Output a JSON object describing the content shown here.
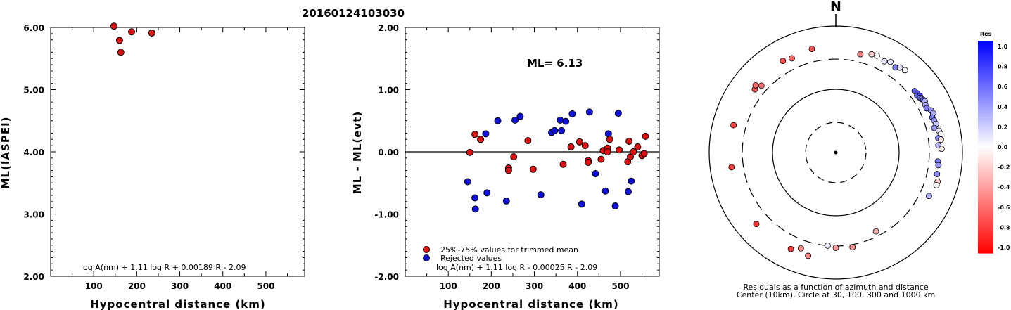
{
  "figure_title": "20160124103030",
  "colors": {
    "trimmed": "#dd1111",
    "rejected": "#1111dd",
    "axis": "#000000"
  },
  "chart_data": [
    {
      "type": "scatter",
      "ylabel": "ML(IASPEI)",
      "xlabel": "Hypocentral distance (km)",
      "xlim": [
        0,
        590
      ],
      "ylim": [
        2.0,
        6.0
      ],
      "xticks": [
        100,
        200,
        300,
        400,
        500
      ],
      "yticks": [
        "2.00",
        "3.00",
        "4.00",
        "5.00",
        "6.00"
      ],
      "formula": "log A(nm) + 1.11 log R + 0.00189 R - 2.09",
      "points": [
        {
          "x": 147,
          "y": 6.02
        },
        {
          "x": 160,
          "y": 5.79
        },
        {
          "x": 163,
          "y": 5.6
        },
        {
          "x": 188,
          "y": 5.93
        },
        {
          "x": 235,
          "y": 5.91
        }
      ]
    },
    {
      "type": "scatter",
      "ylabel": "ML - ML(evt)",
      "xlabel": "Hypocentral distance (km)",
      "xlim": [
        0,
        590
      ],
      "ylim": [
        -2.0,
        2.0
      ],
      "xticks": [
        100,
        200,
        300,
        400,
        500
      ],
      "yticks": [
        "-2.00",
        "-1.00",
        "0.00",
        "1.00",
        "2.00"
      ],
      "annotation": "ML= 6.13",
      "legend": {
        "placement": "bottom-left",
        "trimmed_label": "25%-75% values for trimmed mean",
        "rejected_label": "Rejected values"
      },
      "formula": "log A(nm) + 1.11 log R - 0.00025 R - 2.09",
      "trimmed": [
        {
          "x": 150,
          "y": -0.01
        },
        {
          "x": 162,
          "y": 0.28
        },
        {
          "x": 175,
          "y": 0.2
        },
        {
          "x": 240,
          "y": -0.26
        },
        {
          "x": 240,
          "y": -0.3
        },
        {
          "x": 252,
          "y": -0.08
        },
        {
          "x": 285,
          "y": 0.18
        },
        {
          "x": 297,
          "y": -0.28
        },
        {
          "x": 367,
          "y": -0.2
        },
        {
          "x": 385,
          "y": 0.08
        },
        {
          "x": 405,
          "y": 0.16
        },
        {
          "x": 418,
          "y": 0.1
        },
        {
          "x": 425,
          "y": -0.14
        },
        {
          "x": 425,
          "y": -0.17
        },
        {
          "x": 455,
          "y": -0.12
        },
        {
          "x": 460,
          "y": 0.02
        },
        {
          "x": 470,
          "y": 0.06
        },
        {
          "x": 470,
          "y": 0.0
        },
        {
          "x": 475,
          "y": 0.2
        },
        {
          "x": 497,
          "y": 0.03
        },
        {
          "x": 517,
          "y": -0.16
        },
        {
          "x": 520,
          "y": 0.17
        },
        {
          "x": 523,
          "y": -0.08
        },
        {
          "x": 530,
          "y": 0.0
        },
        {
          "x": 540,
          "y": 0.08
        },
        {
          "x": 550,
          "y": -0.06
        },
        {
          "x": 555,
          "y": -0.03
        },
        {
          "x": 558,
          "y": 0.25
        }
      ],
      "rejected": [
        {
          "x": 145,
          "y": -0.48
        },
        {
          "x": 162,
          "y": -0.74
        },
        {
          "x": 163,
          "y": -0.92
        },
        {
          "x": 187,
          "y": 0.29
        },
        {
          "x": 190,
          "y": -0.66
        },
        {
          "x": 215,
          "y": 0.5
        },
        {
          "x": 235,
          "y": -0.79
        },
        {
          "x": 255,
          "y": 0.51
        },
        {
          "x": 267,
          "y": 0.57
        },
        {
          "x": 315,
          "y": -0.69
        },
        {
          "x": 340,
          "y": 0.31
        },
        {
          "x": 347,
          "y": 0.34
        },
        {
          "x": 360,
          "y": 0.51
        },
        {
          "x": 363,
          "y": 0.34
        },
        {
          "x": 373,
          "y": 0.49
        },
        {
          "x": 388,
          "y": 0.61
        },
        {
          "x": 410,
          "y": -0.84
        },
        {
          "x": 428,
          "y": 0.64
        },
        {
          "x": 442,
          "y": -0.35
        },
        {
          "x": 465,
          "y": -0.63
        },
        {
          "x": 472,
          "y": 0.29
        },
        {
          "x": 488,
          "y": -0.87
        },
        {
          "x": 495,
          "y": 0.62
        },
        {
          "x": 518,
          "y": -0.64
        },
        {
          "x": 525,
          "y": -0.47
        }
      ]
    },
    {
      "type": "polar-scatter",
      "north_label": "N",
      "caption_line1": "Residuals as a function of azimuth and distance",
      "caption_line2": "Center (10km), Circle at 30, 100, 300 and 1000 km",
      "colorbar": {
        "title": "Res",
        "labels": [
          "1.0",
          "0.8",
          "0.6",
          "0.4",
          "0.2",
          "0.0",
          "-0.2",
          "-0.4",
          "-0.6",
          "-0.8",
          "-1.0"
        ],
        "max": 1.0,
        "min": -1.0
      },
      "stations": [
        {
          "az": 14,
          "dist": 400,
          "res": -0.5
        },
        {
          "az": 20,
          "dist": 450,
          "res": -0.2
        },
        {
          "az": 23,
          "dist": 460,
          "res": 0.0
        },
        {
          "az": 28,
          "dist": 430,
          "res": 0.1
        },
        {
          "az": 31,
          "dist": 470,
          "res": 0.1
        },
        {
          "az": 35,
          "dist": 440,
          "res": 0.5
        },
        {
          "az": 37,
          "dist": 480,
          "res": 0.1
        },
        {
          "az": 40,
          "dist": 500,
          "res": 0.0
        },
        {
          "az": 52,
          "dist": 380,
          "res": 0.6
        },
        {
          "az": 54,
          "dist": 390,
          "res": 0.7
        },
        {
          "az": 55,
          "dist": 370,
          "res": 0.6
        },
        {
          "az": 56,
          "dist": 400,
          "res": 0.7
        },
        {
          "az": 57,
          "dist": 385,
          "res": 0.55
        },
        {
          "az": 58,
          "dist": 395,
          "res": 0.4
        },
        {
          "az": 59,
          "dist": 410,
          "res": 0.6
        },
        {
          "az": 60,
          "dist": 420,
          "res": 0.3
        },
        {
          "az": 62,
          "dist": 400,
          "res": 0.3
        },
        {
          "az": 64,
          "dist": 395,
          "res": 0.5
        },
        {
          "az": 66,
          "dist": 440,
          "res": 0.4
        },
        {
          "az": 68,
          "dist": 455,
          "res": 0.3
        },
        {
          "az": 70,
          "dist": 420,
          "res": 0.5
        },
        {
          "az": 72,
          "dist": 430,
          "res": 0.4
        },
        {
          "az": 74,
          "dist": 445,
          "res": 0.2
        },
        {
          "az": 76,
          "dist": 400,
          "res": 0.4
        },
        {
          "az": 78,
          "dist": 460,
          "res": 0.1
        },
        {
          "az": 80,
          "dist": 480,
          "res": 0.0
        },
        {
          "az": 82,
          "dist": 430,
          "res": 0.5
        },
        {
          "az": 83,
          "dist": 470,
          "res": -0.1
        },
        {
          "az": 86,
          "dist": 420,
          "res": 0.3
        },
        {
          "az": 88,
          "dist": 470,
          "res": -0.05
        },
        {
          "az": 95,
          "dist": 415,
          "res": 0.5
        },
        {
          "az": 97,
          "dist": 430,
          "res": 0.4
        },
        {
          "az": 102,
          "dist": 430,
          "res": 0.45
        },
        {
          "az": 106,
          "dist": 470,
          "res": -0.2
        },
        {
          "az": 108,
          "dist": 470,
          "res": 0.0
        },
        {
          "az": 115,
          "dist": 420,
          "res": 0.3
        },
        {
          "az": 153,
          "dist": 250,
          "res": -0.3
        },
        {
          "az": 170,
          "dist": 330,
          "res": -0.4
        },
        {
          "az": 180,
          "dist": 320,
          "res": -0.4
        },
        {
          "az": 185,
          "dist": 300,
          "res": 0.1
        },
        {
          "az": 200,
          "dist": 410,
          "res": -0.45
        },
        {
          "az": 195,
          "dist": 490,
          "res": -0.5
        },
        {
          "az": 205,
          "dist": 480,
          "res": -0.75
        },
        {
          "az": 228,
          "dist": 490,
          "res": -0.8
        },
        {
          "az": 262,
          "dist": 460,
          "res": -0.75
        },
        {
          "az": 285,
          "dist": 470,
          "res": -0.75
        },
        {
          "az": 308,
          "dist": 420,
          "res": -0.65
        },
        {
          "az": 310,
          "dist": 450,
          "res": -0.6
        },
        {
          "az": 312,
          "dist": 380,
          "res": -0.55
        },
        {
          "az": 330,
          "dist": 470,
          "res": -0.7
        },
        {
          "az": 335,
          "dist": 440,
          "res": -0.6
        },
        {
          "az": 347,
          "dist": 480,
          "res": -0.65
        }
      ]
    }
  ]
}
